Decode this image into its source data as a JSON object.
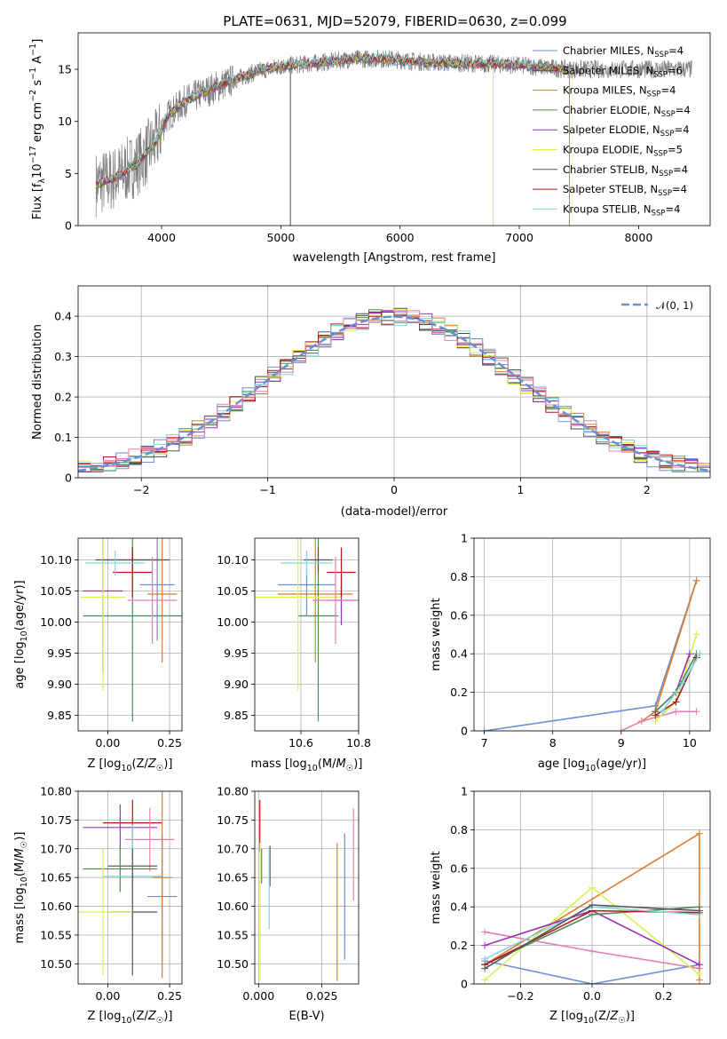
{
  "figure": {
    "title": "PLATE=0631, MJD=52079, FIBERID=0630, z=0.099"
  },
  "colors": {
    "chabrier_miles": "#6a8ed8",
    "salpeter_miles": "#4a4a4a",
    "kroupa_miles": "#e07b2a",
    "chabrier_elodie": "#4f8a55",
    "salpeter_elodie": "#9b30b8",
    "kroupa_elodie": "#d8f050",
    "chabrier_stelib": "#555555",
    "salpeter_stelib": "#b01818",
    "kroupa_stelib": "#7fd8e0",
    "pink": "#e57fb0",
    "normal_curve": "#6a8ed8"
  },
  "chart_data": [
    {
      "id": "spectrum",
      "type": "line",
      "title": "PLATE=0631, MJD=52079, FIBERID=0630, z=0.099",
      "xlabel": "wavelength [Angstrom, rest frame]",
      "ylabel": "Flux [f_λ 10^-17 erg cm^-2 s^-1 A^-1]",
      "ylabel_parts": [
        "Flux [f",
        "λ",
        "10",
        "−17",
        " erg cm",
        "−2",
        " s",
        "−1",
        " A",
        "−1",
        "]"
      ],
      "xlim": [
        3300,
        8600
      ],
      "ylim": [
        0,
        18.5
      ],
      "xticks": [
        4000,
        5000,
        6000,
        7000,
        8000
      ],
      "yticks": [
        0,
        5,
        10,
        15
      ],
      "legend": [
        {
          "label": "Chabrier MILES, N",
          "sub": "SSP",
          "count": "=4",
          "color_key": "chabrier_miles"
        },
        {
          "label": "Salpeter MILES, N",
          "sub": "SSP",
          "count": "=6",
          "color_key": "salpeter_miles"
        },
        {
          "label": "Kroupa MILES, N",
          "sub": "SSP",
          "count": "=4",
          "color_key": "kroupa_miles"
        },
        {
          "label": "Chabrier ELODIE, N",
          "sub": "SSP",
          "count": "=4",
          "color_key": "chabrier_elodie"
        },
        {
          "label": "Salpeter ELODIE, N",
          "sub": "SSP",
          "count": "=4",
          "color_key": "salpeter_elodie"
        },
        {
          "label": "Kroupa ELODIE, N",
          "sub": "SSP",
          "count": "=5",
          "color_key": "kroupa_elodie"
        },
        {
          "label": "Chabrier STELIB, N",
          "sub": "SSP",
          "count": "=4",
          "color_key": "chabrier_stelib"
        },
        {
          "label": "Salpeter STELIB, N",
          "sub": "SSP",
          "count": "=4",
          "color_key": "salpeter_stelib"
        },
        {
          "label": "Kroupa STELIB, N",
          "sub": "SSP",
          "count": "=4",
          "color_key": "kroupa_stelib"
        }
      ],
      "continuum": {
        "x": [
          3450,
          3600,
          3800,
          3950,
          4050,
          4200,
          4500,
          4800,
          5000,
          5300,
          5600,
          5900,
          6200,
          6500,
          6800,
          7000,
          7200,
          7400
        ],
        "y": [
          4,
          4.5,
          6,
          8,
          10.5,
          12,
          13.5,
          14.8,
          15.3,
          15.6,
          16,
          16,
          15.7,
          15.6,
          15.5,
          15.4,
          15.2,
          15
        ]
      },
      "drops": [
        {
          "x": 5080,
          "to": 0,
          "color_key": "salpeter_miles"
        },
        {
          "x": 6780,
          "to": 0,
          "color_key": "kroupa_elodie"
        },
        {
          "x": 7420,
          "to": 0,
          "color_key": "kroupa_miles"
        }
      ]
    },
    {
      "id": "residuals",
      "type": "line",
      "xlabel": "(data-model)/error",
      "ylabel": "Normed distribution",
      "xlim": [
        -2.5,
        2.5
      ],
      "ylim": [
        0,
        0.475
      ],
      "xticks": [
        -2,
        -1,
        0,
        1,
        2
      ],
      "xtick_labels": [
        "−2",
        "−1",
        "0",
        "1",
        "2"
      ],
      "yticks": [
        0.0,
        0.1,
        0.2,
        0.3,
        0.4
      ],
      "grid": true,
      "legend": {
        "label": "𝒩(0, 1)",
        "placement": "top-right"
      },
      "normal_curve": {
        "mean": 0,
        "sigma": 1
      }
    },
    {
      "id": "age_vs_Z",
      "type": "scatter",
      "xlabel": "Z [log10(Z/Z☉)]",
      "ylabel": "age  [log10(age/yr)]",
      "xlim": [
        -0.12,
        0.3
      ],
      "ylim": [
        9.825,
        10.135
      ],
      "xticks": [
        0.0,
        0.25
      ],
      "xtick_labels": [
        "0.00",
        "0.25"
      ],
      "yticks": [
        9.85,
        9.9,
        9.95,
        10.0,
        10.05,
        10.1
      ],
      "ytick_labels": [
        "9.85",
        "9.90",
        "9.95",
        "10.00",
        "10.05",
        "10.10"
      ],
      "grid": true,
      "points": [
        {
          "x": 0.1,
          "y": 10.1,
          "xerr": 0.15,
          "yerr": 0.02,
          "color_key": "salpeter_miles"
        },
        {
          "x": 0.2,
          "y": 10.06,
          "xerr": 0.07,
          "yerr": 0.09,
          "color_key": "chabrier_miles"
        },
        {
          "x": 0.22,
          "y": 10.045,
          "xerr": 0.06,
          "yerr": 0.11,
          "color_key": "kroupa_miles"
        },
        {
          "x": 0.1,
          "y": 10.01,
          "xerr": 0.2,
          "yerr": 0.17,
          "color_key": "chabrier_elodie"
        },
        {
          "x": -0.02,
          "y": 10.05,
          "xerr": 0.08,
          "yerr": 0.13,
          "color_key": "salpeter_elodie"
        },
        {
          "x": -0.02,
          "y": 10.04,
          "xerr": 0.09,
          "yerr": 0.15,
          "color_key": "kroupa_elodie"
        },
        {
          "x": 0.1,
          "y": 10.1,
          "xerr": 0.12,
          "yerr": 0.02,
          "color_key": "chabrier_stelib"
        },
        {
          "x": 0.1,
          "y": 10.08,
          "xerr": 0.08,
          "yerr": 0.04,
          "color_key": "salpeter_stelib"
        },
        {
          "x": 0.03,
          "y": 10.095,
          "xerr": 0.12,
          "yerr": 0.02,
          "color_key": "kroupa_stelib"
        },
        {
          "x": 0.18,
          "y": 10.035,
          "xerr": 0.1,
          "yerr": 0.07,
          "color_key": "pink"
        }
      ]
    },
    {
      "id": "age_vs_mass",
      "type": "scatter",
      "xlabel": "mass [log10(M/M☉)]",
      "ylabel": "",
      "xlim": [
        10.44,
        10.8
      ],
      "ylim": [
        9.825,
        10.135
      ],
      "xticks": [
        10.6,
        10.8
      ],
      "xtick_labels": [
        "10.6",
        "10.8"
      ],
      "yticks": [
        9.85,
        9.9,
        9.95,
        10.0,
        10.05,
        10.1
      ],
      "ytick_labels": [
        "9.85",
        "9.90",
        "9.95",
        "10.00",
        "10.05",
        "10.10"
      ],
      "grid": true,
      "points": [
        {
          "x": 10.62,
          "y": 10.06,
          "xerr": 0.1,
          "yerr": 0.05,
          "color_key": "chabrier_miles"
        },
        {
          "x": 10.65,
          "y": 10.045,
          "xerr": 0.13,
          "yerr": 0.11,
          "color_key": "kroupa_miles"
        },
        {
          "x": 10.66,
          "y": 10.01,
          "xerr": 0.07,
          "yerr": 0.17,
          "color_key": "chabrier_elodie"
        },
        {
          "x": 10.74,
          "y": 10.035,
          "xerr": 0.05,
          "yerr": 0.04,
          "color_key": "salpeter_elodie"
        },
        {
          "x": 10.59,
          "y": 10.04,
          "xerr": 0.15,
          "yerr": 0.15,
          "color_key": "kroupa_elodie"
        },
        {
          "x": 10.66,
          "y": 10.1,
          "xerr": 0.05,
          "yerr": 0.02,
          "color_key": "chabrier_stelib"
        },
        {
          "x": 10.74,
          "y": 10.08,
          "xerr": 0.05,
          "yerr": 0.04,
          "color_key": "salpeter_stelib"
        },
        {
          "x": 10.62,
          "y": 10.095,
          "xerr": 0.09,
          "yerr": 0.02,
          "color_key": "kroupa_stelib"
        },
        {
          "x": 10.72,
          "y": 10.035,
          "xerr": 0.08,
          "yerr": 0.07,
          "color_key": "pink"
        }
      ]
    },
    {
      "id": "weight_vs_age",
      "type": "line",
      "xlabel": "age  [log10(age/yr)]",
      "ylabel": "mass weight",
      "xlim": [
        6.85,
        10.3
      ],
      "ylim": [
        0.0,
        1.0
      ],
      "xticks": [
        7,
        8,
        9,
        10
      ],
      "yticks": [
        0.0,
        0.2,
        0.4,
        0.6,
        0.8,
        1.0
      ],
      "grid": true,
      "series": [
        {
          "color_key": "chabrier_miles",
          "x": [
            7.0,
            9.5,
            10.1
          ],
          "y": [
            0.0,
            0.13,
            0.78
          ]
        },
        {
          "color_key": "kroupa_miles",
          "x": [
            9.3,
            9.5,
            10.1
          ],
          "y": [
            0.05,
            0.1,
            0.78
          ]
        },
        {
          "color_key": "pink",
          "x": [
            9.0,
            9.3,
            9.8,
            10.1
          ],
          "y": [
            0.0,
            0.05,
            0.1,
            0.1
          ]
        },
        {
          "color_key": "kroupa_elodie",
          "x": [
            9.5,
            9.8,
            10.1
          ],
          "y": [
            0.05,
            0.15,
            0.5
          ]
        },
        {
          "color_key": "salpeter_elodie",
          "x": [
            9.5,
            9.8,
            10.0
          ],
          "y": [
            0.1,
            0.2,
            0.4
          ]
        },
        {
          "color_key": "chabrier_elodie",
          "x": [
            9.5,
            9.8,
            10.1
          ],
          "y": [
            0.1,
            0.2,
            0.4
          ]
        },
        {
          "color_key": "salpeter_stelib",
          "x": [
            9.5,
            9.8,
            10.1
          ],
          "y": [
            0.08,
            0.15,
            0.38
          ]
        },
        {
          "color_key": "kroupa_stelib",
          "x": [
            9.6,
            9.9,
            10.15
          ],
          "y": [
            0.1,
            0.25,
            0.4
          ]
        }
      ]
    },
    {
      "id": "mass_vs_Z",
      "type": "scatter",
      "xlabel": "Z [log10(Z/Z☉)]",
      "ylabel": "mass [log10(M/M☉)]",
      "xlim": [
        -0.12,
        0.3
      ],
      "ylim": [
        10.465,
        10.8
      ],
      "xticks": [
        0.0,
        0.25
      ],
      "xtick_labels": [
        "0.00",
        "0.25"
      ],
      "yticks": [
        10.5,
        10.55,
        10.6,
        10.65,
        10.7,
        10.75,
        10.8
      ],
      "ytick_labels": [
        "10.50",
        "10.55",
        "10.60",
        "10.65",
        "10.70",
        "10.75",
        "10.80"
      ],
      "grid": true,
      "points": [
        {
          "x": 0.1,
          "y": 10.745,
          "xerr": 0.12,
          "yerr": 0.04,
          "color_key": "salpeter_stelib"
        },
        {
          "x": 0.05,
          "y": 10.737,
          "xerr": 0.15,
          "yerr": 0.04,
          "color_key": "salpeter_elodie"
        },
        {
          "x": 0.17,
          "y": 10.716,
          "xerr": 0.1,
          "yerr": 0.055,
          "color_key": "pink"
        },
        {
          "x": 0.1,
          "y": 10.67,
          "xerr": 0.1,
          "yerr": 0.035,
          "color_key": "salpeter_miles"
        },
        {
          "x": 0.05,
          "y": 10.665,
          "xerr": 0.15,
          "yerr": 0.04,
          "color_key": "chabrier_elodie"
        },
        {
          "x": 0.1,
          "y": 10.652,
          "xerr": 0.12,
          "yerr": 0.09,
          "color_key": "kroupa_stelib"
        },
        {
          "x": 0.22,
          "y": 10.617,
          "xerr": 0.06,
          "yerr": 0.11,
          "color_key": "chabrier_miles"
        },
        {
          "x": 0.22,
          "y": 10.65,
          "xerr": 0.04,
          "yerr": 0.175,
          "color_key": "kroupa_miles"
        },
        {
          "x": 0.1,
          "y": 10.59,
          "xerr": 0.1,
          "yerr": 0.11,
          "color_key": "chabrier_stelib"
        },
        {
          "x": -0.02,
          "y": 10.59,
          "xerr": 0.12,
          "yerr": 0.11,
          "color_key": "kroupa_elodie"
        }
      ]
    },
    {
      "id": "mass_vs_EBV",
      "type": "scatter",
      "xlabel": "E(B-V)",
      "ylabel": "",
      "xlim": [
        -0.0015,
        0.0395
      ],
      "ylim": [
        10.465,
        10.8
      ],
      "xticks": [
        0.0,
        0.025
      ],
      "xtick_labels": [
        "0.000",
        "0.025"
      ],
      "yticks": [
        10.5,
        10.55,
        10.6,
        10.65,
        10.7,
        10.75,
        10.8
      ],
      "ytick_labels": [
        "10.50",
        "10.55",
        "10.60",
        "10.65",
        "10.70",
        "10.75",
        "10.80"
      ],
      "grid": true,
      "points": [
        {
          "x": 0.0005,
          "y": 10.74,
          "xerr": 0,
          "yerr": 0.045,
          "color_key": "salpeter_stelib"
        },
        {
          "x": 0.0012,
          "y": 10.67,
          "xerr": 0,
          "yerr": 0.03,
          "color_key": "chabrier_elodie"
        },
        {
          "x": 0.0045,
          "y": 10.67,
          "xerr": 0,
          "yerr": 0.035,
          "color_key": "salpeter_miles"
        },
        {
          "x": 0.0042,
          "y": 10.63,
          "xerr": 0,
          "yerr": 0.07,
          "color_key": "kroupa_stelib"
        },
        {
          "x": 0.0006,
          "y": 10.59,
          "xerr": 0,
          "yerr": 0.12,
          "color_key": "kroupa_elodie"
        },
        {
          "x": 0.031,
          "y": 10.59,
          "xerr": 0,
          "yerr": 0.12,
          "color_key": "kroupa_miles"
        },
        {
          "x": 0.034,
          "y": 10.617,
          "xerr": 0,
          "yerr": 0.11,
          "color_key": "chabrier_miles"
        },
        {
          "x": 0.0375,
          "y": 10.69,
          "xerr": 0,
          "yerr": 0.08,
          "color_key": "pink"
        }
      ]
    },
    {
      "id": "weight_vs_Z",
      "type": "line",
      "xlabel": "Z [log10(Z/Z☉)]",
      "ylabel": "mass weight",
      "xlim": [
        -0.33,
        0.33
      ],
      "ylim": [
        0.0,
        1.0
      ],
      "xticks": [
        -0.2,
        0.0,
        0.2
      ],
      "xtick_labels": [
        "−0.2",
        "0.0",
        "0.2"
      ],
      "yticks": [
        0.0,
        0.2,
        0.4,
        0.6,
        0.8,
        1.0
      ],
      "grid": true,
      "series": [
        {
          "color_key": "kroupa_miles",
          "x": [
            -0.3,
            0.3,
            0.3
          ],
          "y": [
            0.1,
            0.78,
            0.02
          ]
        },
        {
          "color_key": "chabrier_miles",
          "x": [
            -0.3,
            0.0,
            0.3
          ],
          "y": [
            0.12,
            0.0,
            0.1
          ]
        },
        {
          "color_key": "pink",
          "x": [
            -0.3,
            0.0,
            0.3
          ],
          "y": [
            0.27,
            0.17,
            0.08
          ]
        },
        {
          "color_key": "kroupa_elodie",
          "x": [
            -0.3,
            0.0,
            0.3
          ],
          "y": [
            0.02,
            0.5,
            0.05
          ]
        },
        {
          "color_key": "salpeter_elodie",
          "x": [
            -0.3,
            0.0,
            0.3
          ],
          "y": [
            0.2,
            0.38,
            0.1
          ]
        },
        {
          "color_key": "chabrier_elodie",
          "x": [
            -0.3,
            0.0,
            0.3
          ],
          "y": [
            0.1,
            0.36,
            0.4
          ]
        },
        {
          "color_key": "salpeter_stelib",
          "x": [
            -0.3,
            0.0,
            0.3
          ],
          "y": [
            0.1,
            0.38,
            0.37
          ]
        },
        {
          "color_key": "kroupa_stelib",
          "x": [
            -0.3,
            0.0,
            0.3
          ],
          "y": [
            0.13,
            0.4,
            0.36
          ]
        },
        {
          "color_key": "chabrier_stelib",
          "x": [
            -0.3,
            0.0,
            0.3
          ],
          "y": [
            0.08,
            0.41,
            0.38
          ]
        }
      ]
    }
  ]
}
